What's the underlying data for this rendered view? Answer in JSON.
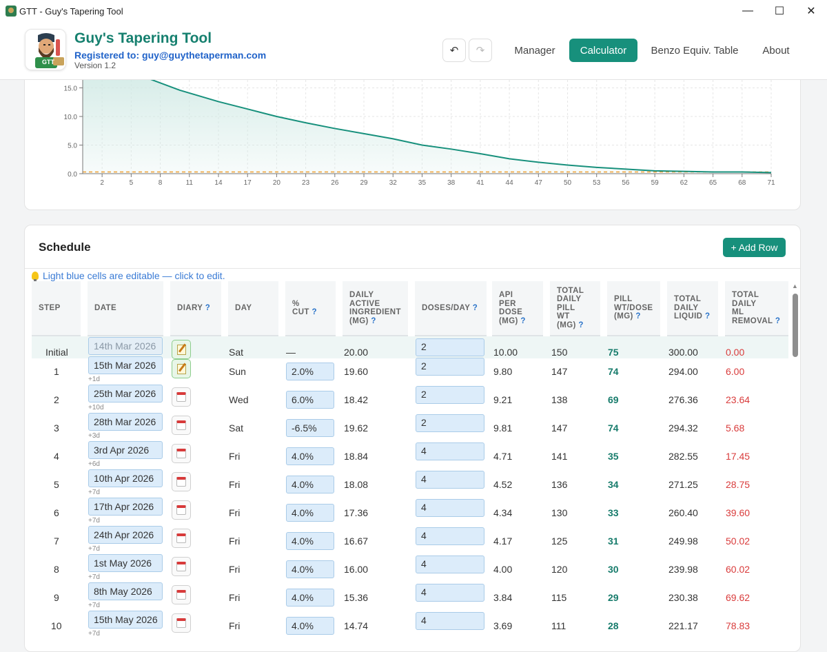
{
  "window": {
    "title": "GTT - Guy's Tapering Tool",
    "minimize": "—",
    "maximize": "☐",
    "close": "✕"
  },
  "brand": {
    "title": "Guy's Tapering Tool",
    "registered": "Registered to: guy@guythetaperman.com",
    "version": "Version 1.2",
    "logo_text": "GTT"
  },
  "toolbar": {
    "undo": "↶",
    "redo": "↷"
  },
  "nav": [
    {
      "label": "Manager",
      "active": false
    },
    {
      "label": "Calculator",
      "active": true
    },
    {
      "label": "Benzo Equiv. Table",
      "active": false
    },
    {
      "label": "About",
      "active": false
    }
  ],
  "chart_data": {
    "type": "area",
    "y_ticks": [
      "0.0",
      "5.0",
      "10.0",
      "15.0"
    ],
    "x_ticks": [
      "2",
      "5",
      "8",
      "11",
      "14",
      "17",
      "20",
      "23",
      "26",
      "29",
      "32",
      "35",
      "38",
      "41",
      "44",
      "47",
      "50",
      "53",
      "56",
      "59",
      "62",
      "65",
      "68",
      "71"
    ],
    "ylim_visible": [
      0,
      16.5
    ],
    "xlim": [
      0,
      71
    ],
    "grid": true,
    "series": [
      {
        "x": [
          0,
          7,
          10,
          14,
          17,
          20,
          23,
          26,
          29,
          32,
          35,
          38,
          41,
          44,
          47,
          50,
          53,
          56,
          59,
          62,
          65,
          68,
          71
        ],
        "values": [
          20.0,
          16.5,
          14.6,
          12.6,
          11.3,
          10.0,
          8.9,
          7.9,
          7.0,
          6.1,
          5.0,
          4.3,
          3.5,
          2.6,
          2.0,
          1.5,
          1.1,
          0.8,
          0.5,
          0.4,
          0.3,
          0.3,
          0.2
        ]
      }
    ],
    "target_line": 0.3,
    "colors": {
      "line": "#17907c",
      "fill": "#cfe9e4",
      "target": "#f0a030"
    }
  },
  "schedule": {
    "title": "Schedule",
    "add_row": "+ Add Row",
    "hint": "Light blue cells are editable — click to edit.",
    "headers": {
      "step": "STEP",
      "date": "DATE",
      "diary": "DIARY",
      "day": "DAY",
      "cut": [
        "%",
        "CUT"
      ],
      "dai": [
        "DAILY",
        "ACTIVE",
        "INGREDIENT",
        "(MG)"
      ],
      "doses": "DOSES/DAY",
      "api": [
        "API",
        "PER",
        "DOSE",
        "(MG)"
      ],
      "tpw": [
        "TOTAL",
        "DAILY",
        "PILL",
        "WT",
        "(MG)"
      ],
      "pwd": [
        "PILL",
        "WT/DOSE",
        "(MG)"
      ],
      "liquid": [
        "TOTAL",
        "DAILY",
        "LIQUID"
      ],
      "removal": [
        "TOTAL",
        "DAILY",
        "ML",
        "REMOVAL"
      ],
      "help": "?"
    },
    "rows": [
      {
        "step": "Initial",
        "date": "14th Mar 2026",
        "delta": "",
        "diary": "note",
        "day": "Sat",
        "cut": "—",
        "dai": "20.00",
        "doses": "2",
        "api": "10.00",
        "tpw": "150",
        "pwd": "75",
        "liquid": "300.00",
        "removal": "0.00"
      },
      {
        "step": "1",
        "date": "15th Mar 2026",
        "delta": "+1d",
        "diary": "note",
        "day": "Sun",
        "cut": "2.0%",
        "dai": "19.60",
        "doses": "2",
        "api": "9.80",
        "tpw": "147",
        "pwd": "74",
        "liquid": "294.00",
        "removal": "6.00"
      },
      {
        "step": "2",
        "date": "25th Mar 2026",
        "delta": "+10d",
        "diary": "cal",
        "day": "Wed",
        "cut": "6.0%",
        "dai": "18.42",
        "doses": "2",
        "api": "9.21",
        "tpw": "138",
        "pwd": "69",
        "liquid": "276.36",
        "removal": "23.64"
      },
      {
        "step": "3",
        "date": "28th Mar 2026",
        "delta": "+3d",
        "diary": "cal",
        "day": "Sat",
        "cut": "-6.5%",
        "dai": "19.62",
        "doses": "2",
        "api": "9.81",
        "tpw": "147",
        "pwd": "74",
        "liquid": "294.32",
        "removal": "5.68"
      },
      {
        "step": "4",
        "date": "3rd Apr 2026",
        "delta": "+6d",
        "diary": "cal",
        "day": "Fri",
        "cut": "4.0%",
        "dai": "18.84",
        "doses": "4",
        "api": "4.71",
        "tpw": "141",
        "pwd": "35",
        "liquid": "282.55",
        "removal": "17.45"
      },
      {
        "step": "5",
        "date": "10th Apr 2026",
        "delta": "+7d",
        "diary": "cal",
        "day": "Fri",
        "cut": "4.0%",
        "dai": "18.08",
        "doses": "4",
        "api": "4.52",
        "tpw": "136",
        "pwd": "34",
        "liquid": "271.25",
        "removal": "28.75"
      },
      {
        "step": "6",
        "date": "17th Apr 2026",
        "delta": "+7d",
        "diary": "cal",
        "day": "Fri",
        "cut": "4.0%",
        "dai": "17.36",
        "doses": "4",
        "api": "4.34",
        "tpw": "130",
        "pwd": "33",
        "liquid": "260.40",
        "removal": "39.60"
      },
      {
        "step": "7",
        "date": "24th Apr 2026",
        "delta": "+7d",
        "diary": "cal",
        "day": "Fri",
        "cut": "4.0%",
        "dai": "16.67",
        "doses": "4",
        "api": "4.17",
        "tpw": "125",
        "pwd": "31",
        "liquid": "249.98",
        "removal": "50.02"
      },
      {
        "step": "8",
        "date": "1st May 2026",
        "delta": "+7d",
        "diary": "cal",
        "day": "Fri",
        "cut": "4.0%",
        "dai": "16.00",
        "doses": "4",
        "api": "4.00",
        "tpw": "120",
        "pwd": "30",
        "liquid": "239.98",
        "removal": "60.02"
      },
      {
        "step": "9",
        "date": "8th May 2026",
        "delta": "+7d",
        "diary": "cal",
        "day": "Fri",
        "cut": "4.0%",
        "dai": "15.36",
        "doses": "4",
        "api": "3.84",
        "tpw": "115",
        "pwd": "29",
        "liquid": "230.38",
        "removal": "69.62"
      },
      {
        "step": "10",
        "date": "15th May 2026",
        "delta": "+7d",
        "diary": "cal",
        "day": "Fri",
        "cut": "4.0%",
        "dai": "14.74",
        "doses": "4",
        "api": "3.69",
        "tpw": "111",
        "pwd": "28",
        "liquid": "221.17",
        "removal": "78.83"
      }
    ]
  }
}
